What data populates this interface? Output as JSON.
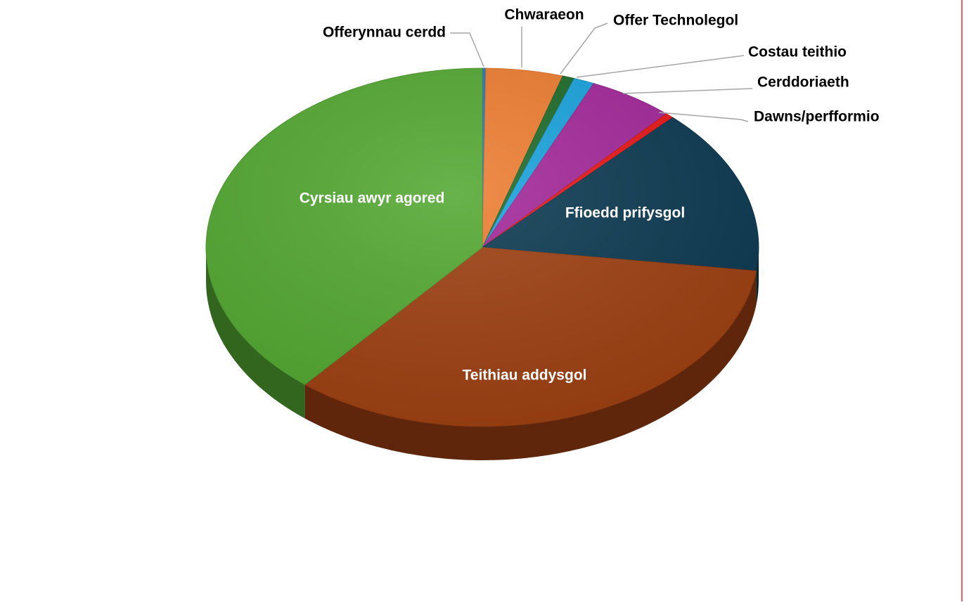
{
  "chart_data": {
    "type": "pie",
    "categories": [
      "Offerynnau cerdd",
      "Chwaraeon",
      "Offer Technolegol",
      "Costau teithio",
      "Cerddoriaeth",
      "Dawns/perfformio",
      "Ffioedd prifysgol",
      "Teithiau addysgol",
      "Cyrsiau awyr agored"
    ],
    "values": [
      0.2,
      4.5,
      0.7,
      1.2,
      5,
      0.5,
      15,
      34,
      38.9
    ],
    "colors": [
      "#2e75b6",
      "#ed7d31",
      "#1e6b2a",
      "#1aa3dc",
      "#a3289a",
      "#e81717",
      "#0d3a52",
      "#9e4012",
      "#53a832"
    ]
  }
}
